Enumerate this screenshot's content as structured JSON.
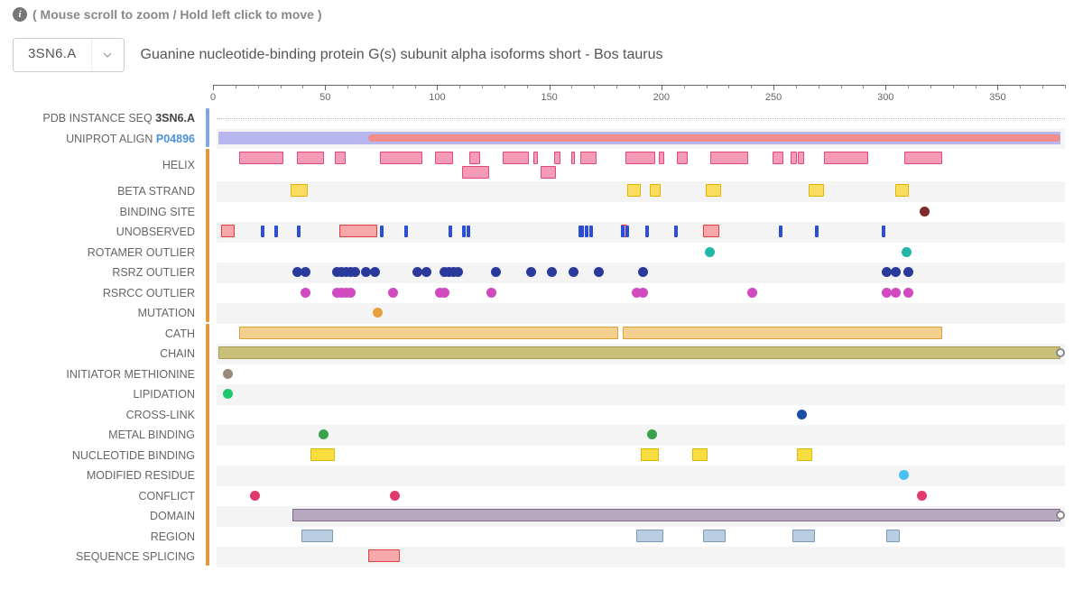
{
  "hint": "( Mouse scroll to zoom / Hold left click to move )",
  "selector_value": "3SN6.A",
  "title": "Guanine nucleotide-binding protein G(s) subunit alpha isoforms short - Bos taurus",
  "axis": {
    "domain": [
      0,
      380
    ],
    "ticks": [
      0,
      50,
      100,
      150,
      200,
      250,
      300,
      350
    ],
    "minor_step": 10
  },
  "colors": {
    "stripe": "#f4f4f4",
    "group1": "#7fa9d6",
    "group2": "#e09a3a",
    "uniprot_bg": "#b7b6ee",
    "uniprot_fg": "#f28d8d",
    "helix_fill": "#f59bb5",
    "helix_stroke": "#e04880",
    "beta_fill": "#fadd60",
    "beta_stroke": "#e0b500",
    "binding_dot": "#7f2b2b",
    "blue_bar": "#2a4fd6",
    "red_box_fill": "#f7a8a8",
    "red_box_stroke": "#e03a3a",
    "rotamer": "#1fb8a8",
    "rsrz": "#2a3a9a",
    "rsrcc": "#d14ac0",
    "mutation": "#e8a03e",
    "cath_fill": "#f3d08e",
    "cath_stroke": "#d6a336",
    "chain_fill": "#c9c07a",
    "chain_stroke": "#a89a50",
    "initiator": "#9a8a7a",
    "lipidation": "#1fc96a",
    "crosslink": "#1a4fa8",
    "metal": "#3aa14a",
    "nucleotide_fill": "#fadd40",
    "nucleotide_stroke": "#d6b800",
    "modres": "#4ac0f0",
    "conflict": "#e03a6a",
    "domain_fill": "#b8a8c0",
    "domain_stroke": "#7a6a8a",
    "region_fill": "#b8cde0",
    "region_stroke": "#7a9ab8",
    "splice_fill": "#f7a8a8",
    "splice_stroke": "#e04040"
  },
  "group_bars": [
    {
      "color_key": "group1",
      "from_track": 0,
      "to_track": 1
    },
    {
      "color_key": "group2",
      "from_track": 2,
      "to_track": 9
    },
    {
      "color_key": "group2",
      "from_track": 10,
      "to_track": 21
    }
  ],
  "tracks": [
    {
      "label": "PDB INSTANCE SEQ",
      "label_suffix_bold": "3SN6.A",
      "striped": false,
      "type": "dotted",
      "features": []
    },
    {
      "label": "UNIPROT ALIGN",
      "label_suffix_link": "P04896",
      "striped": true,
      "type": "align",
      "bg": [
        1,
        378
      ],
      "fg": [
        68,
        378
      ]
    },
    {
      "label": "HELIX",
      "striped": false,
      "box_color_key": "helix",
      "two_rows": true,
      "features": [
        [
          10,
          30
        ],
        [
          36,
          48
        ],
        [
          53,
          58
        ],
        [
          73,
          92
        ],
        [
          98,
          106
        ],
        [
          113,
          118
        ],
        [
          128,
          140
        ],
        [
          142,
          144
        ],
        [
          151,
          154
        ],
        [
          159,
          160.5
        ],
        [
          163,
          170
        ],
        [
          183,
          196.5
        ],
        [
          198,
          200.5
        ],
        [
          206,
          211
        ],
        [
          221,
          238
        ],
        [
          249,
          254
        ],
        [
          257,
          260
        ],
        [
          260.5,
          263
        ],
        [
          272,
          292
        ],
        [
          308,
          325
        ]
      ],
      "features_row2": [
        [
          110,
          122
        ],
        [
          145,
          152
        ]
      ]
    },
    {
      "label": "BETA STRAND",
      "striped": true,
      "box_color_key": "beta",
      "features": [
        [
          33,
          41
        ],
        [
          184,
          190
        ],
        [
          194,
          199
        ],
        [
          219,
          226
        ],
        [
          265,
          272
        ],
        [
          304,
          310
        ]
      ]
    },
    {
      "label": "BINDING SITE",
      "striped": false,
      "dot_color_key": "binding_dot",
      "features": [
        [
          317
        ]
      ]
    },
    {
      "label": "UNOBSERVED",
      "striped": true,
      "type": "unobserved",
      "boxes": [
        [
          2,
          8
        ],
        [
          55,
          72
        ],
        [
          181,
          184
        ],
        [
          218,
          225
        ]
      ],
      "bars": [
        [
          20
        ],
        [
          26
        ],
        [
          36
        ],
        [
          73
        ],
        [
          84
        ],
        [
          104
        ],
        [
          110
        ],
        [
          112
        ],
        [
          162
        ],
        [
          163
        ],
        [
          165
        ],
        [
          167
        ],
        [
          181
        ],
        [
          183
        ],
        [
          192
        ],
        [
          205
        ],
        [
          252
        ],
        [
          268
        ],
        [
          298
        ]
      ]
    },
    {
      "label": "ROTAMER OUTLIER",
      "striped": false,
      "dot_color_key": "rotamer",
      "features": [
        [
          221
        ],
        [
          309
        ]
      ]
    },
    {
      "label": "RSRZ OUTLIER",
      "striped": true,
      "dot_color_key": "rsrz",
      "features": [
        [
          36
        ],
        [
          40
        ],
        [
          54
        ],
        [
          56
        ],
        [
          58
        ],
        [
          60
        ],
        [
          62
        ],
        [
          67
        ],
        [
          71
        ],
        [
          90
        ],
        [
          94
        ],
        [
          102
        ],
        [
          104
        ],
        [
          106
        ],
        [
          108
        ],
        [
          125
        ],
        [
          141
        ],
        [
          150
        ],
        [
          160
        ],
        [
          171
        ],
        [
          191
        ],
        [
          300
        ],
        [
          304
        ],
        [
          310
        ]
      ]
    },
    {
      "label": "RSRCC OUTLIER",
      "striped": false,
      "dot_color_key": "rsrcc",
      "features": [
        [
          40
        ],
        [
          54
        ],
        [
          56
        ],
        [
          58
        ],
        [
          60
        ],
        [
          79
        ],
        [
          100
        ],
        [
          102
        ],
        [
          123
        ],
        [
          188
        ],
        [
          191
        ],
        [
          240
        ],
        [
          300
        ],
        [
          304
        ],
        [
          310
        ]
      ]
    },
    {
      "label": "MUTATION",
      "striped": true,
      "dot_color_key": "mutation",
      "features": [
        [
          72
        ]
      ]
    },
    {
      "label": "CATH",
      "striped": false,
      "box_color_key": "cath",
      "features": [
        [
          10,
          180
        ],
        [
          182,
          325
        ]
      ]
    },
    {
      "label": "CHAIN",
      "striped": true,
      "box_color_key": "chain",
      "handle": true,
      "features": [
        [
          1,
          378
        ]
      ]
    },
    {
      "label": "INITIATOR METHIONINE",
      "striped": false,
      "dot_color_key": "initiator",
      "features": [
        [
          5
        ]
      ]
    },
    {
      "label": "LIPIDATION",
      "striped": true,
      "dot_color_key": "lipidation",
      "features": [
        [
          5
        ]
      ]
    },
    {
      "label": "CROSS-LINK",
      "striped": false,
      "dot_color_key": "crosslink",
      "features": [
        [
          262
        ]
      ]
    },
    {
      "label": "METAL BINDING",
      "striped": true,
      "dot_color_key": "metal",
      "features": [
        [
          48
        ],
        [
          195
        ]
      ]
    },
    {
      "label": "NUCLEOTIDE BINDING",
      "striped": false,
      "square_color_key": "nucleotide",
      "features": [
        [
          42,
          53
        ],
        [
          190,
          198
        ],
        [
          213,
          220
        ],
        [
          260,
          267
        ]
      ]
    },
    {
      "label": "MODIFIED RESIDUE",
      "striped": true,
      "dot_color_key": "modres",
      "features": [
        [
          308
        ]
      ]
    },
    {
      "label": "CONFLICT",
      "striped": false,
      "dot_color_key": "conflict",
      "features": [
        [
          17
        ],
        [
          80
        ],
        [
          316
        ]
      ]
    },
    {
      "label": "DOMAIN",
      "striped": true,
      "box_color_key": "domain",
      "handle": true,
      "features": [
        [
          34,
          378
        ]
      ]
    },
    {
      "label": "REGION",
      "striped": false,
      "box_color_key": "region",
      "features": [
        [
          38,
          52
        ],
        [
          188,
          200
        ],
        [
          218,
          228
        ],
        [
          258,
          268
        ],
        [
          300,
          306
        ]
      ]
    },
    {
      "label": "SEQUENCE SPLICING",
      "striped": true,
      "box_color_key": "splice",
      "features": [
        [
          68,
          82
        ]
      ]
    }
  ]
}
